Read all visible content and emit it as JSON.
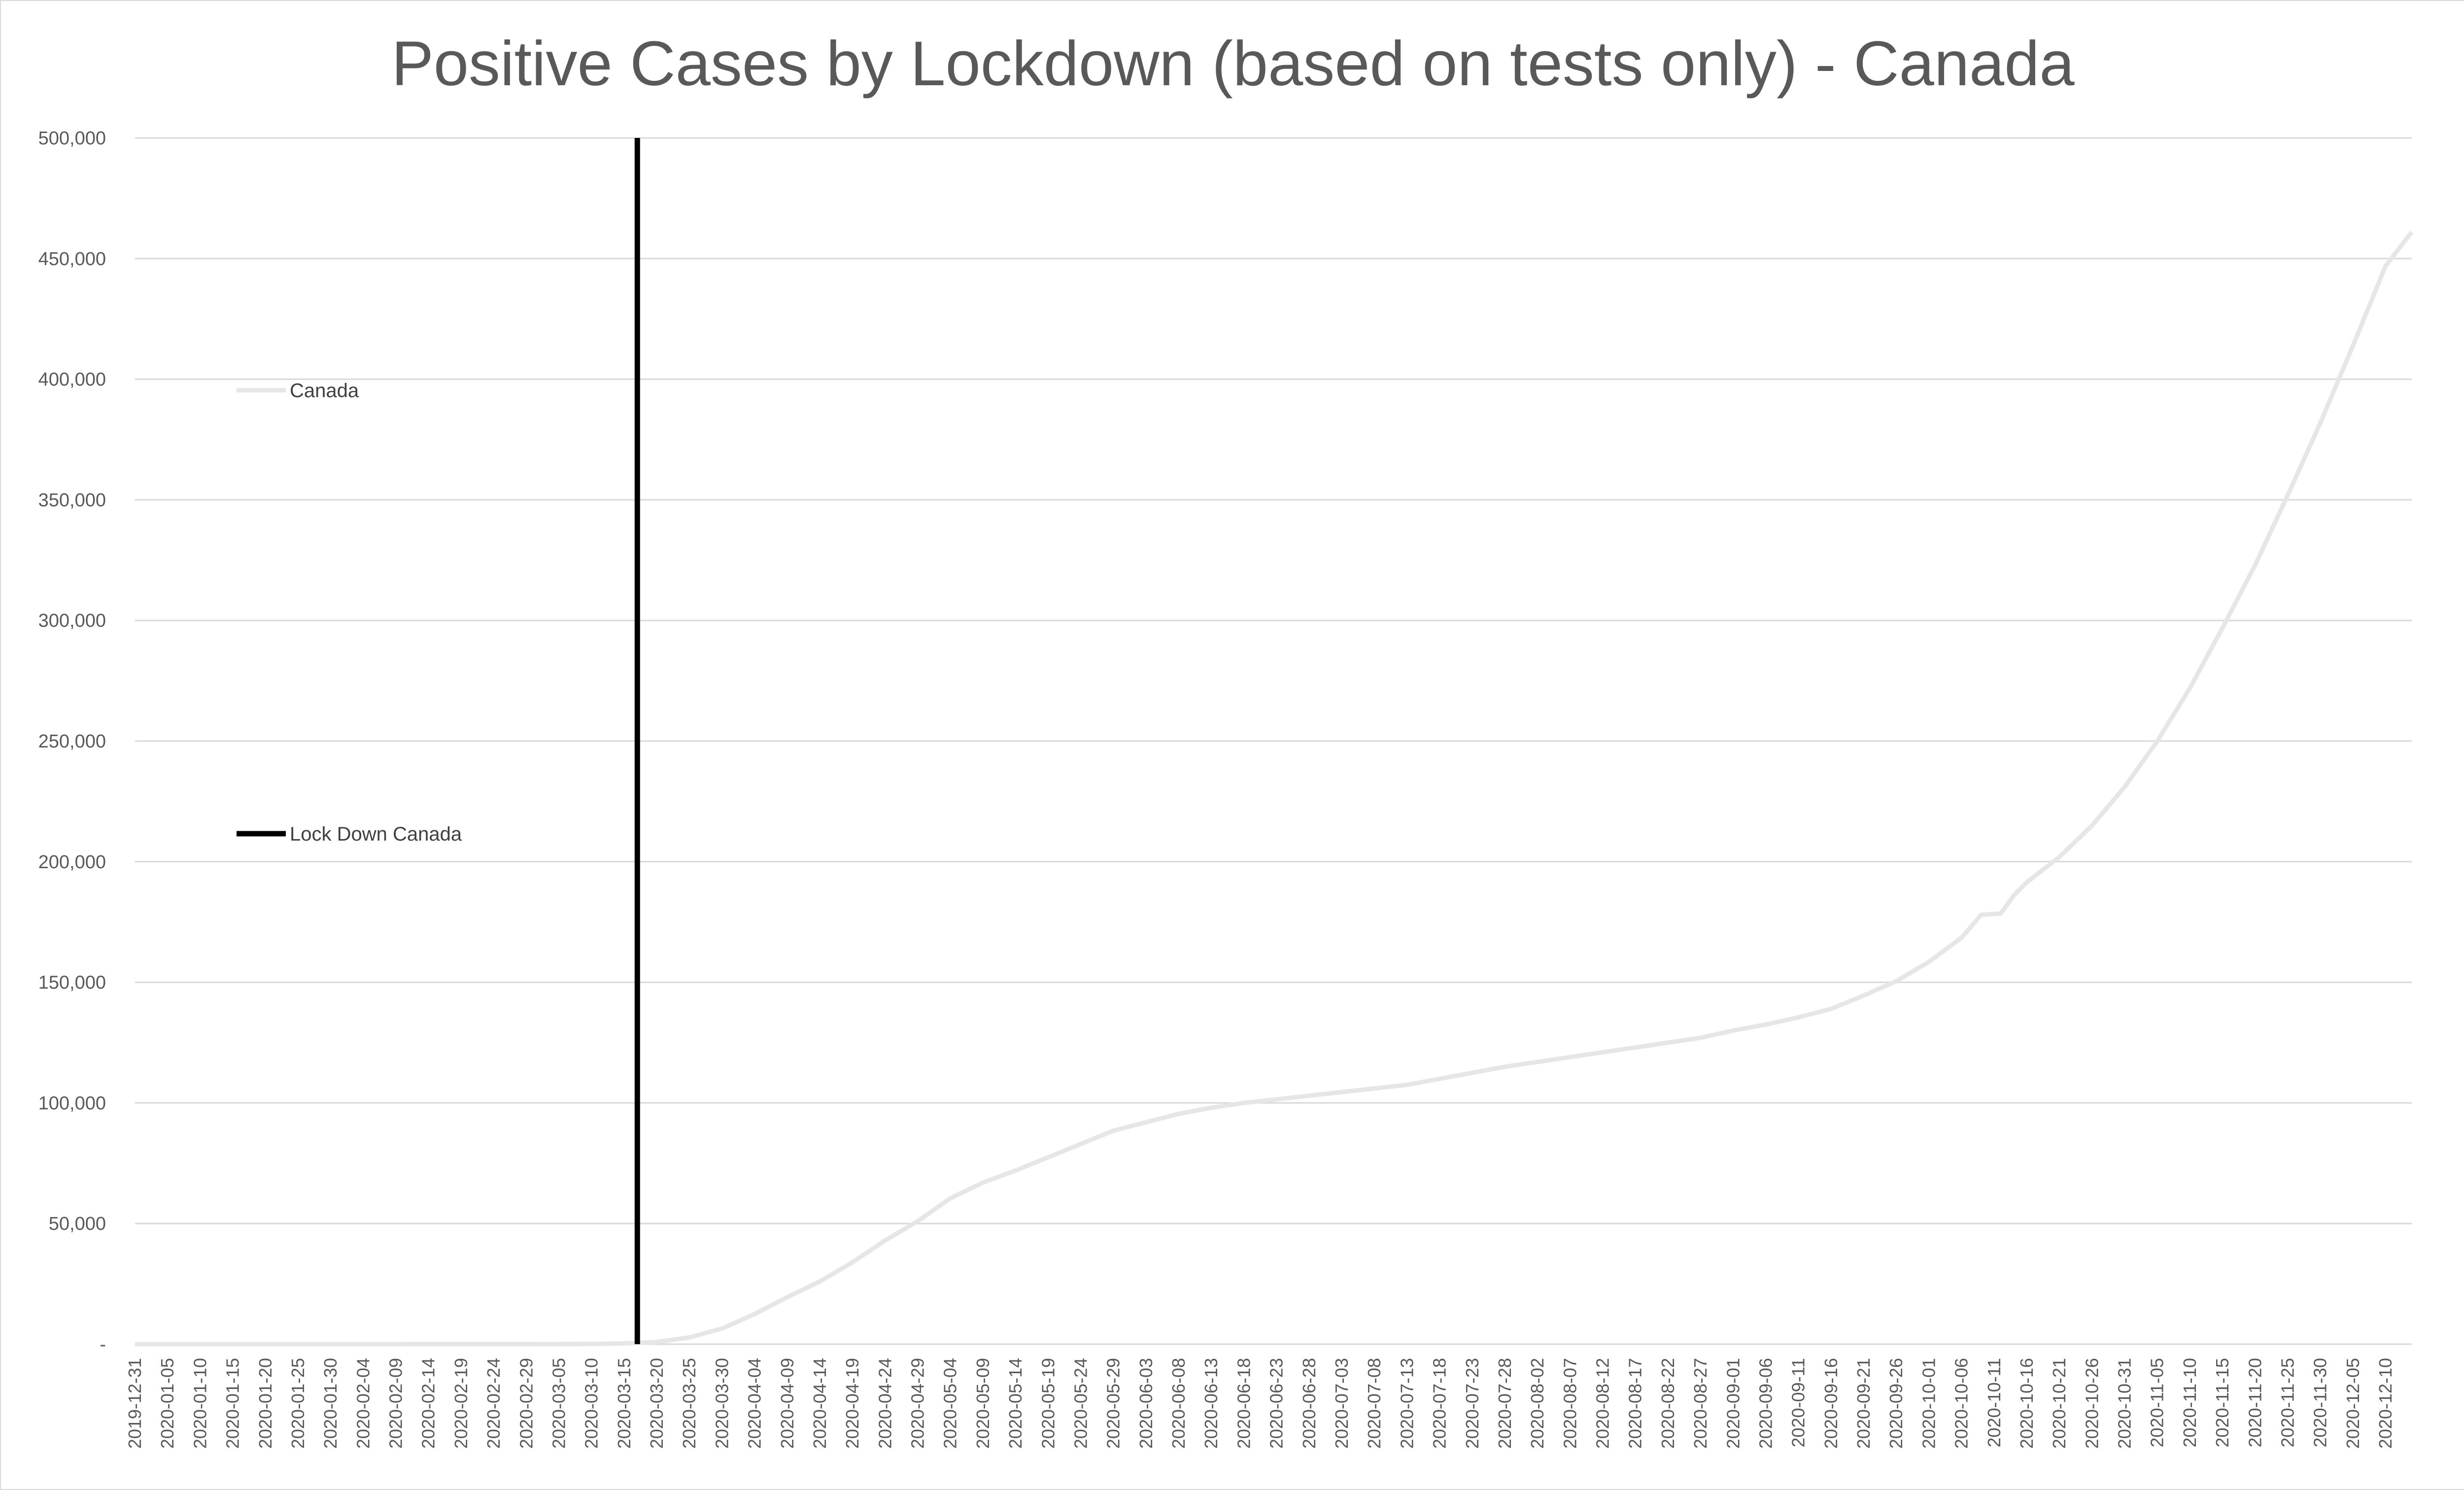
{
  "chart_data": {
    "type": "line",
    "title": "Positive Cases by Lockdown (based on tests only) - Canada",
    "xlabel": "",
    "ylabel": "",
    "ylim": [
      0,
      500000
    ],
    "y_ticks": [
      "-",
      "50,000",
      "100,000",
      "150,000",
      "200,000",
      "250,000",
      "300,000",
      "350,000",
      "400,000",
      "450,000",
      "500,000"
    ],
    "x_start": "2019-12-31",
    "x_end": "2020-12-14",
    "x_tick_labels": [
      "2019-12-31",
      "2020-01-05",
      "2020-01-10",
      "2020-01-15",
      "2020-01-20",
      "2020-01-25",
      "2020-01-30",
      "2020-02-04",
      "2020-02-09",
      "2020-02-14",
      "2020-02-19",
      "2020-02-24",
      "2020-02-29",
      "2020-03-05",
      "2020-03-10",
      "2020-03-15",
      "2020-03-20",
      "2020-03-25",
      "2020-03-30",
      "2020-04-04",
      "2020-04-09",
      "2020-04-14",
      "2020-04-19",
      "2020-04-24",
      "2020-04-29",
      "2020-05-04",
      "2020-05-09",
      "2020-05-14",
      "2020-05-19",
      "2020-05-24",
      "2020-05-29",
      "2020-06-03",
      "2020-06-08",
      "2020-06-13",
      "2020-06-18",
      "2020-06-23",
      "2020-06-28",
      "2020-07-03",
      "2020-07-08",
      "2020-07-13",
      "2020-07-18",
      "2020-07-23",
      "2020-07-28",
      "2020-08-02",
      "2020-08-07",
      "2020-08-12",
      "2020-08-17",
      "2020-08-22",
      "2020-08-27",
      "2020-09-01",
      "2020-09-06",
      "2020-09-11",
      "2020-09-16",
      "2020-09-21",
      "2020-09-26",
      "2020-10-01",
      "2020-10-06",
      "2020-10-11",
      "2020-10-16",
      "2020-10-21",
      "2020-10-26",
      "2020-10-31",
      "2020-11-05",
      "2020-11-10",
      "2020-11-15",
      "2020-11-20",
      "2020-11-25",
      "2020-11-30",
      "2020-12-05",
      "2020-12-10"
    ],
    "grid": true,
    "legend_position": "left",
    "series": [
      {
        "name": "Canada",
        "color": "#e6e6e6",
        "points": [
          [
            "2019-12-31",
            0
          ],
          [
            "2020-03-01",
            20
          ],
          [
            "2020-03-10",
            80
          ],
          [
            "2020-03-15",
            300
          ],
          [
            "2020-03-20",
            900
          ],
          [
            "2020-03-25",
            2800
          ],
          [
            "2020-03-30",
            6500
          ],
          [
            "2020-04-04",
            12500
          ],
          [
            "2020-04-09",
            19500
          ],
          [
            "2020-04-14",
            26000
          ],
          [
            "2020-04-19",
            34000
          ],
          [
            "2020-04-24",
            43000
          ],
          [
            "2020-04-29",
            51000
          ],
          [
            "2020-05-04",
            60500
          ],
          [
            "2020-05-09",
            67000
          ],
          [
            "2020-05-14",
            72000
          ],
          [
            "2020-05-19",
            77500
          ],
          [
            "2020-05-24",
            83000
          ],
          [
            "2020-05-29",
            88500
          ],
          [
            "2020-06-03",
            92000
          ],
          [
            "2020-06-08",
            95500
          ],
          [
            "2020-06-13",
            98000
          ],
          [
            "2020-06-18",
            100000
          ],
          [
            "2020-06-23",
            101500
          ],
          [
            "2020-06-28",
            103000
          ],
          [
            "2020-07-03",
            104500
          ],
          [
            "2020-07-08",
            106000
          ],
          [
            "2020-07-13",
            107500
          ],
          [
            "2020-07-18",
            110000
          ],
          [
            "2020-07-23",
            112500
          ],
          [
            "2020-07-28",
            115000
          ],
          [
            "2020-08-02",
            117000
          ],
          [
            "2020-08-07",
            119000
          ],
          [
            "2020-08-12",
            121000
          ],
          [
            "2020-08-17",
            123000
          ],
          [
            "2020-08-22",
            125000
          ],
          [
            "2020-08-27",
            127000
          ],
          [
            "2020-09-01",
            130000
          ],
          [
            "2020-09-06",
            132500
          ],
          [
            "2020-09-11",
            135500
          ],
          [
            "2020-09-16",
            139000
          ],
          [
            "2020-09-21",
            144500
          ],
          [
            "2020-09-26",
            150500
          ],
          [
            "2020-10-01",
            158500
          ],
          [
            "2020-10-06",
            168500
          ],
          [
            "2020-10-09",
            178000
          ],
          [
            "2020-10-12",
            178500
          ],
          [
            "2020-10-14",
            186000
          ],
          [
            "2020-10-16",
            191500
          ],
          [
            "2020-10-21",
            202000
          ],
          [
            "2020-10-26",
            215000
          ],
          [
            "2020-10-31",
            231000
          ],
          [
            "2020-11-05",
            250000
          ],
          [
            "2020-11-10",
            272000
          ],
          [
            "2020-11-15",
            297000
          ],
          [
            "2020-11-20",
            323000
          ],
          [
            "2020-11-25",
            352000
          ],
          [
            "2020-11-30",
            382000
          ],
          [
            "2020-12-05",
            414000
          ],
          [
            "2020-12-10",
            447000
          ],
          [
            "2020-12-14",
            461000
          ]
        ]
      },
      {
        "name": "Lock Down Canada",
        "color": "#000000",
        "points": [
          [
            "2020-03-17",
            0
          ],
          [
            "2020-03-17",
            500000
          ]
        ]
      }
    ]
  }
}
